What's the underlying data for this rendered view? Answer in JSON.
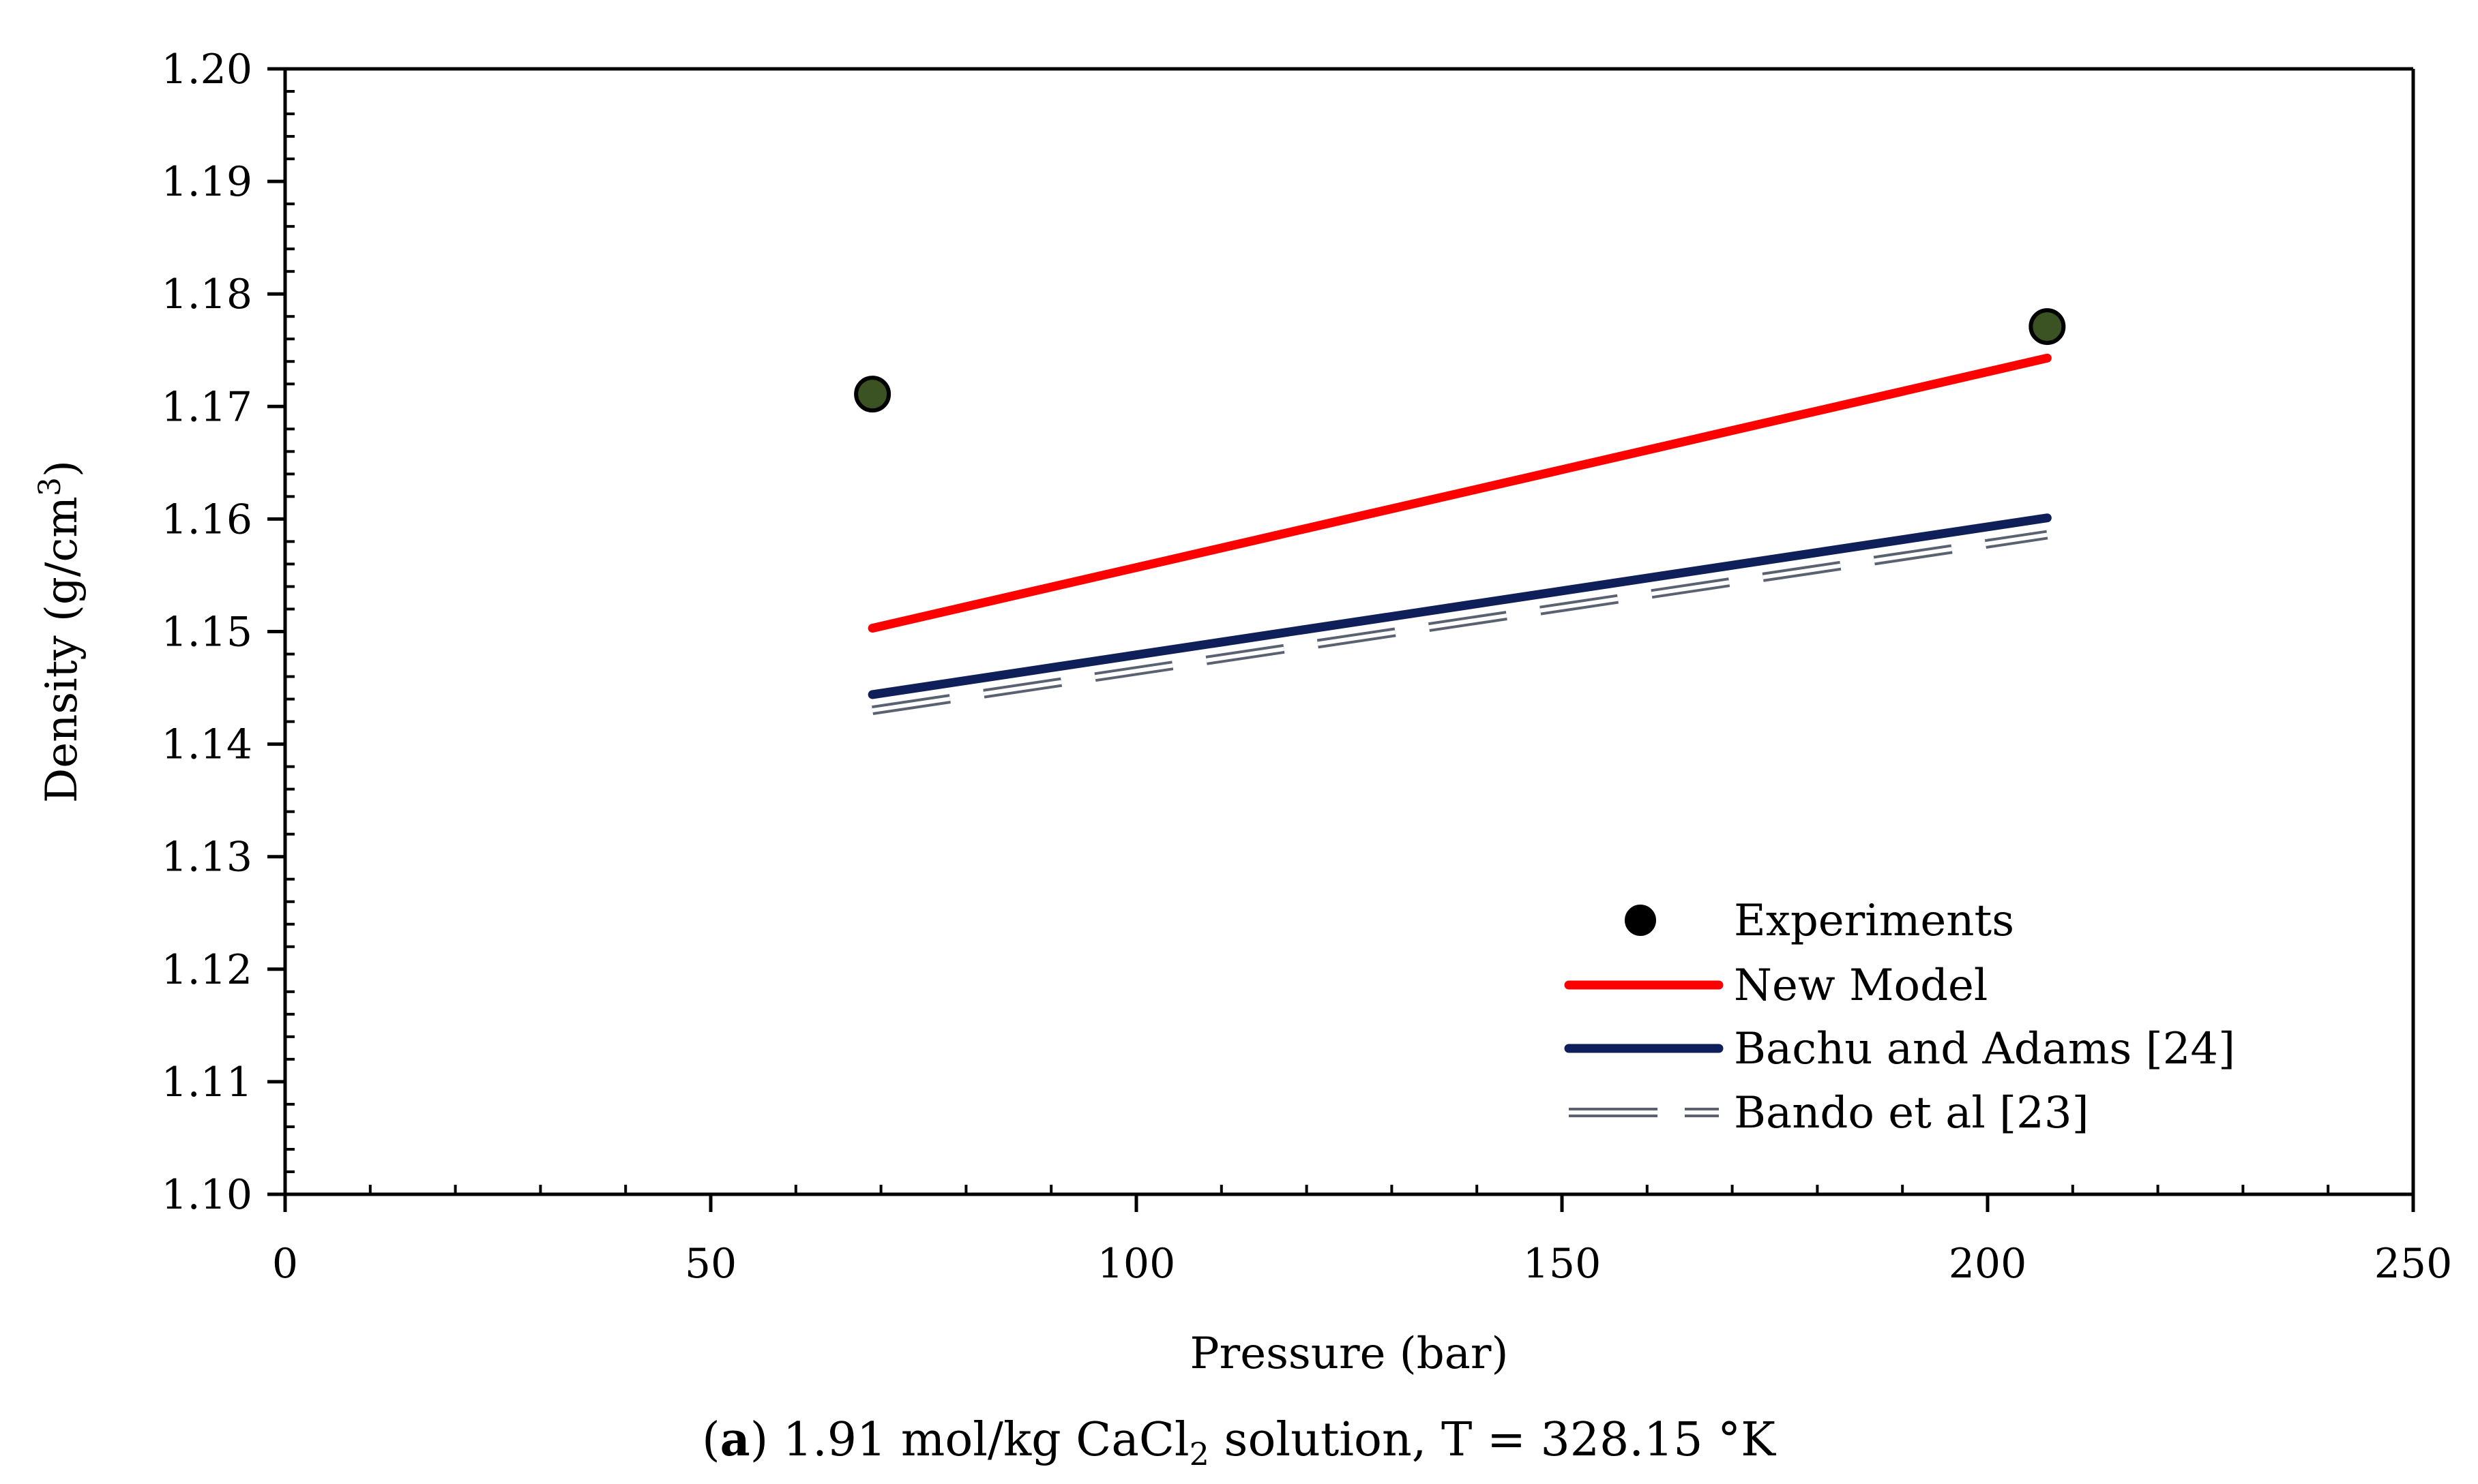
{
  "chart_data": {
    "type": "line",
    "title": "",
    "caption": {
      "prefix": "(",
      "label": "a",
      "suffix": ") 1.91 mol/kg CaCl",
      "subscript": "2",
      "rest": " solution, T = 328.15 °K"
    },
    "xlabel": "Pressure (bar)",
    "ylabel": "Density (g/cm",
    "ylabel_sup": "3",
    "ylabel_end": ")",
    "xlim": [
      0,
      250
    ],
    "ylim": [
      1.1,
      1.2
    ],
    "x_ticks": [
      0,
      50,
      100,
      150,
      200,
      250
    ],
    "x_tick_labels": [
      "0",
      "50",
      "100",
      "150",
      "200",
      "250"
    ],
    "y_ticks": [
      1.1,
      1.11,
      1.12,
      1.13,
      1.14,
      1.15,
      1.16,
      1.17,
      1.18,
      1.19,
      1.2
    ],
    "y_tick_labels": [
      "1.10",
      "1.11",
      "1.12",
      "1.13",
      "1.14",
      "1.15",
      "1.16",
      "1.17",
      "1.18",
      "1.19",
      "1.20"
    ],
    "grid": false,
    "legend_position": "bottom-right",
    "series": [
      {
        "name": "Experiments",
        "kind": "scatter",
        "color": "#3b5323",
        "x": [
          69,
          207
        ],
        "y": [
          1.1711,
          1.1771
        ]
      },
      {
        "name": "New Model",
        "kind": "line",
        "color": "#ff0000",
        "x": [
          69,
          207
        ],
        "y": [
          1.1503,
          1.1743
        ]
      },
      {
        "name": "Bachu and Adams [24]",
        "kind": "line",
        "color": "#0f1f5a",
        "x": [
          69,
          207
        ],
        "y": [
          1.1444,
          1.1601
        ]
      },
      {
        "name": "Bando et al [23]",
        "kind": "double-dashed",
        "color": "#5a6272",
        "x": [
          69,
          207
        ],
        "y": [
          1.143,
          1.1586
        ]
      }
    ]
  }
}
